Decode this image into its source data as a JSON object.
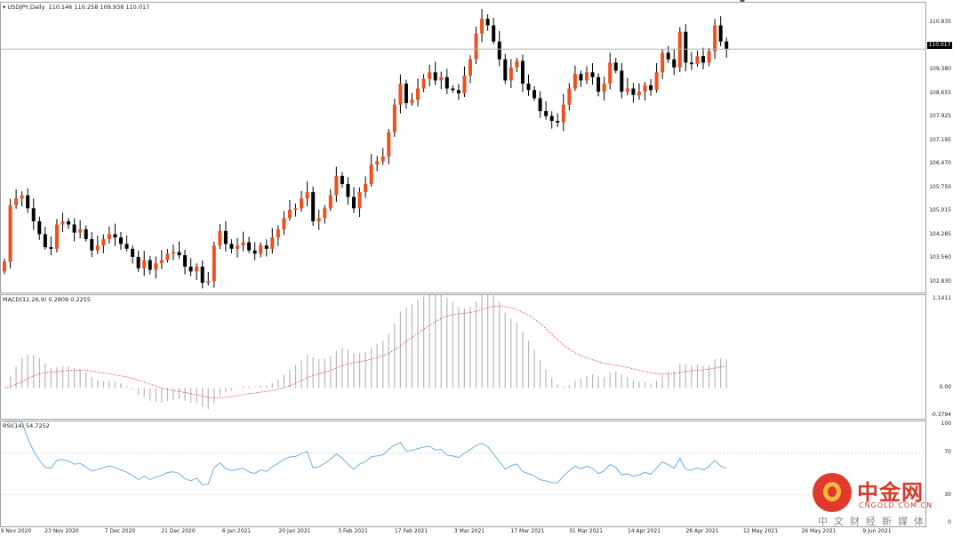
{
  "chart_data": [
    {
      "type": "candlestick",
      "title": "USDJPY,Daily",
      "ohlc_readout": "110.146 110.258 109.938 110.017",
      "current_price_label": "110.017",
      "current_price": 110.017,
      "ylim": [
        102.5,
        111.45
      ],
      "y_ticks": [
        "110.835",
        "110.100",
        "109.380",
        "108.655",
        "107.925",
        "107.195",
        "106.470",
        "105.750",
        "105.015",
        "104.285",
        "103.560",
        "102.830"
      ],
      "colors": {
        "up": "#f0501e",
        "down": "#000000",
        "price_line": "#b0b0b0"
      },
      "closes": [
        103.45,
        105.2,
        105.4,
        105.5,
        105.1,
        104.7,
        104.3,
        103.9,
        103.85,
        104.6,
        104.7,
        104.6,
        104.35,
        104.45,
        104.15,
        103.8,
        103.95,
        104.15,
        104.3,
        104.2,
        104.0,
        103.85,
        103.6,
        103.25,
        103.5,
        103.2,
        103.4,
        103.5,
        103.7,
        103.75,
        103.65,
        103.3,
        103.15,
        103.3,
        102.8,
        102.85,
        103.95,
        104.4,
        104.0,
        103.85,
        103.95,
        104.05,
        103.8,
        103.7,
        103.95,
        103.85,
        104.2,
        104.45,
        104.8,
        105.05,
        105.1,
        105.4,
        105.6,
        104.7,
        104.8,
        105.1,
        105.5,
        106.1,
        105.85,
        105.45,
        105.1,
        105.6,
        105.85,
        106.45,
        106.55,
        106.7,
        107.45,
        108.3,
        108.95,
        108.35,
        108.45,
        108.8,
        109.1,
        109.3,
        109.05,
        109.15,
        108.8,
        108.75,
        108.65,
        109.2,
        109.7,
        110.5,
        110.95,
        110.75,
        110.25,
        109.7,
        109.05,
        109.45,
        109.65,
        108.95,
        108.75,
        108.5,
        108.1,
        107.95,
        107.8,
        107.75,
        108.3,
        108.8,
        109.25,
        109.05,
        109.3,
        109.15,
        108.7,
        108.95,
        109.6,
        109.35,
        108.7,
        108.8,
        108.6,
        108.7,
        108.9,
        108.75,
        109.3,
        109.9,
        109.7,
        109.45,
        110.55,
        109.6,
        109.55,
        109.8,
        109.6,
        109.95,
        110.75,
        110.25,
        110.02
      ],
      "macd": {
        "label": "MACD(12,26,9) 0.2809 0.2255",
        "ylim": [
          -0.3794,
          1.1411
        ],
        "y_ticks": [
          "1.1411",
          "0.00",
          "-0.3794"
        ],
        "colors": {
          "histogram": "#b8b8b8",
          "signal": "#e23838"
        }
      },
      "rsi": {
        "label": "RSI(14) 54.7252",
        "ylim": [
          0,
          100
        ],
        "levels": [
          70,
          30
        ],
        "y_ticks": [
          "100",
          "70",
          "30",
          "0"
        ],
        "colors": {
          "line": "#5ba7e6",
          "level": "#c8c8c8"
        }
      },
      "x_tick_labels": [
        "9 Nov 2020",
        "23 Nov 2020",
        "7 Dec 2020",
        "21 Dec 2020",
        "6 Jan 2021",
        "20 Jan 2021",
        "3 Feb 2021",
        "17 Feb 2021",
        "3 Mar 2021",
        "17 Mar 2021",
        "31 Mar 2021",
        "14 Apr 2021",
        "28 Apr 2021",
        "12 May 2021",
        "26 May 2021",
        "9 Jun 2021"
      ]
    }
  ],
  "watermark": {
    "title": "中金网",
    "domain": "CNGOLD.COM.CN",
    "subtitle": "中文财经新媒体"
  }
}
